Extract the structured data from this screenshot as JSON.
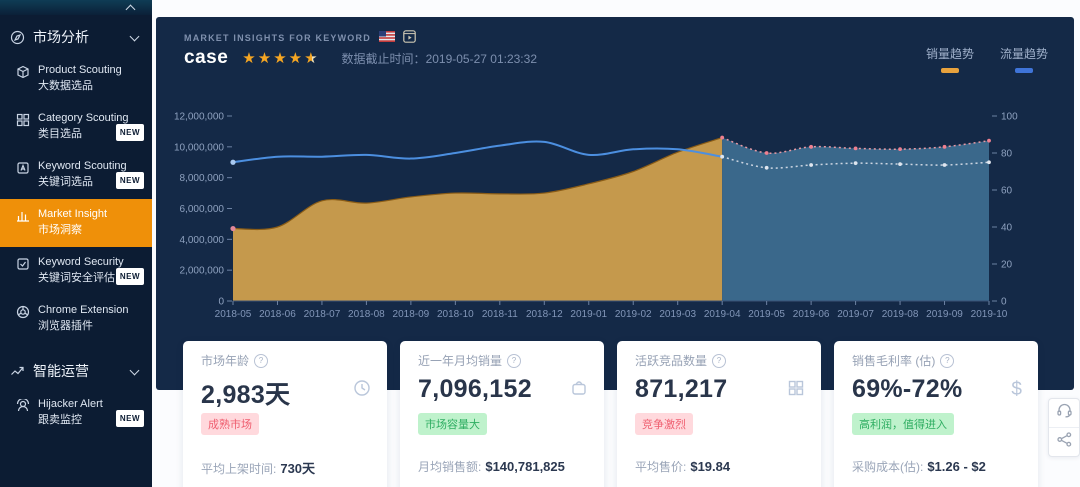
{
  "sidebar": {
    "sections": [
      {
        "label": "市场分析",
        "icon": "compass-icon",
        "items": [
          {
            "en": "Product Scouting",
            "cn": "大数据选品",
            "icon": "box-icon",
            "badge": ""
          },
          {
            "en": "Category Scouting",
            "cn": "类目选品",
            "icon": "category-icon",
            "badge": "NEW"
          },
          {
            "en": "Keyword Scouting",
            "cn": "关键词选品",
            "icon": "keyword-icon",
            "badge": "NEW"
          },
          {
            "en": "Market Insight",
            "cn": "市场洞察",
            "icon": "insight-icon",
            "badge": "",
            "active": true
          },
          {
            "en": "Keyword Security",
            "cn": "关键词安全评估",
            "icon": "security-icon",
            "badge": "NEW"
          },
          {
            "en": "Chrome Extension",
            "cn": "浏览器插件",
            "icon": "chrome-icon",
            "badge": ""
          }
        ]
      },
      {
        "label": "智能运营",
        "icon": "trend-icon",
        "items": [
          {
            "en": "Hijacker Alert",
            "cn": "跟卖监控",
            "icon": "hijacker-icon",
            "badge": "NEW"
          }
        ]
      }
    ],
    "active_color": "#ef9009"
  },
  "header": {
    "eyebrow": "MARKET INSIGHTS FOR KEYWORD",
    "keyword": "case",
    "rating": 4.5,
    "flag": "us-flag-icon",
    "video": "video-icon",
    "data_cutoff_label": "数据截止时间：",
    "data_cutoff": "2019-05-27 01:23:32",
    "legend": [
      {
        "label": "销量趋势",
        "color": "#e8a23d"
      },
      {
        "label": "流量趋势",
        "color": "#3f74d8"
      }
    ]
  },
  "chart_data": {
    "type": "area",
    "title": "Market insights for keyword: case",
    "grid": false,
    "legend_position": "top-right",
    "x_labels": [
      "2018-05",
      "2018-06",
      "2018-07",
      "2018-08",
      "2018-09",
      "2018-10",
      "2018-11",
      "2018-12",
      "2019-01",
      "2019-02",
      "2019-03",
      "2019-04",
      "2019-05",
      "2019-06",
      "2019-07",
      "2019-08",
      "2019-09",
      "2019-10"
    ],
    "y_left": {
      "ticks": [
        "0",
        "2,000,000",
        "4,000,000",
        "6,000,000",
        "8,000,000",
        "10,000,000",
        "12,000,000"
      ],
      "max": 12000000
    },
    "y_right": {
      "ticks": [
        "0",
        "20",
        "40",
        "60",
        "80",
        "100"
      ],
      "max": 100
    },
    "series": [
      {
        "name": "销量趋势",
        "type": "area",
        "axis": "left",
        "x_start": 0,
        "color": "#cf9f4d",
        "edge": "#8a5c16",
        "start_marker": "#e2889a",
        "values": [
          4700000,
          4800000,
          6500000,
          6350000,
          6750000,
          7000000,
          6950000,
          7000000,
          7600000,
          8400000,
          9650000,
          10600000
        ]
      },
      {
        "name": "销量趋势(预测)",
        "type": "area-dotted",
        "axis": "left",
        "x_start": 11,
        "color": "#3c6c8f",
        "line_color": "#e89aa4",
        "marker": "#ef8090",
        "values": [
          10600000,
          9600000,
          10000000,
          9900000,
          9850000,
          10000000,
          10400000
        ]
      },
      {
        "name": "流量趋势",
        "type": "line",
        "axis": "right",
        "x_start": 0,
        "color": "#4c8fe0",
        "start_marker": "#a9c9f0",
        "values": [
          75,
          78,
          78,
          79,
          77,
          80,
          84,
          86,
          79,
          82,
          82,
          78
        ]
      },
      {
        "name": "流量趋势(预测)",
        "type": "line-dotted",
        "axis": "right",
        "x_start": 11,
        "color": "#cdd6e2",
        "marker": "#dfe6ef",
        "values": [
          78,
          72,
          73.5,
          74.5,
          74,
          73.5,
          75
        ]
      }
    ]
  },
  "cards": [
    {
      "title": "市场年龄",
      "value": "2,983天",
      "icon": "clock-icon",
      "badge": "成熟市场",
      "badge_type": "pink",
      "foot_label": "平均上架时间:",
      "foot_value": "730天"
    },
    {
      "title": "近一年月均销量",
      "value": "7,096,152",
      "icon": "bag-icon",
      "badge": "市场容量大",
      "badge_type": "green",
      "foot_label": "月均销售额:",
      "foot_value": "$140,781,825"
    },
    {
      "title": "活跃竞品数量",
      "value": "871,217",
      "icon": "grid-icon",
      "badge": "竞争激烈",
      "badge_type": "pink",
      "foot_label": "平均售价:",
      "foot_value": "$19.84"
    },
    {
      "title": "销售毛利率 (估)",
      "value": "69%-72%",
      "icon": "dollar-icon",
      "badge": "高利润，值得进入",
      "badge_type": "green",
      "foot_label": "采购成本(估):",
      "foot_value": "$1.26 - $2"
    }
  ],
  "float_buttons": [
    {
      "name": "customer-service",
      "icon": "headset-icon"
    },
    {
      "name": "share",
      "icon": "share-icon"
    }
  ]
}
